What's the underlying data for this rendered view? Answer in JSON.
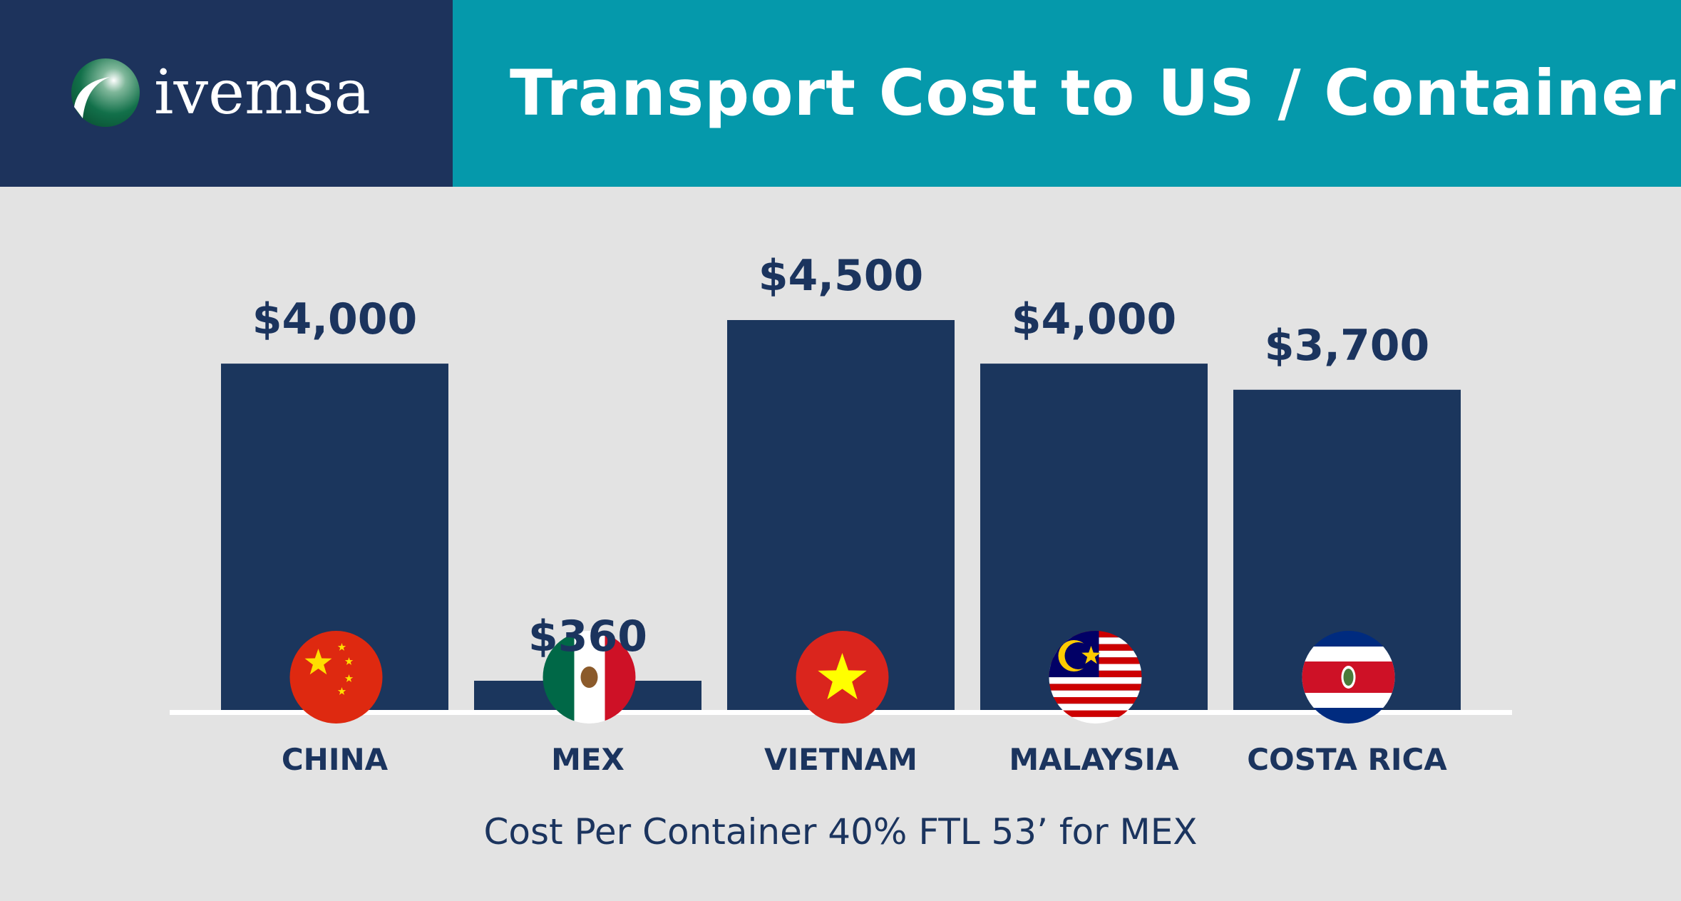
{
  "header": {
    "logo_text": "ivemsa",
    "title": "Transport Cost to US / Container",
    "colors": {
      "logo_panel": "#1d335c",
      "title_panel": "#0599ab"
    }
  },
  "chart_data": {
    "type": "bar",
    "title": "Transport Cost to US / Container",
    "categories": [
      "CHINA",
      "MEX",
      "VIETNAM",
      "MALAYSIA",
      "COSTA RICA"
    ],
    "values": [
      4000,
      360,
      4500,
      4000,
      3700
    ],
    "value_labels": [
      "$4,000",
      "$360",
      "$4,500",
      "$4,000",
      "$3,700"
    ],
    "flags": [
      "china-flag",
      "mexico-flag",
      "vietnam-flag",
      "malaysia-flag",
      "costa-rica-flag"
    ],
    "ylim": [
      0,
      4500
    ],
    "grid": false,
    "bar_color": "#1b365d",
    "xlabel": "",
    "ylabel": ""
  },
  "footnote": "Cost Per Container 40% FTL 53’ for MEX"
}
